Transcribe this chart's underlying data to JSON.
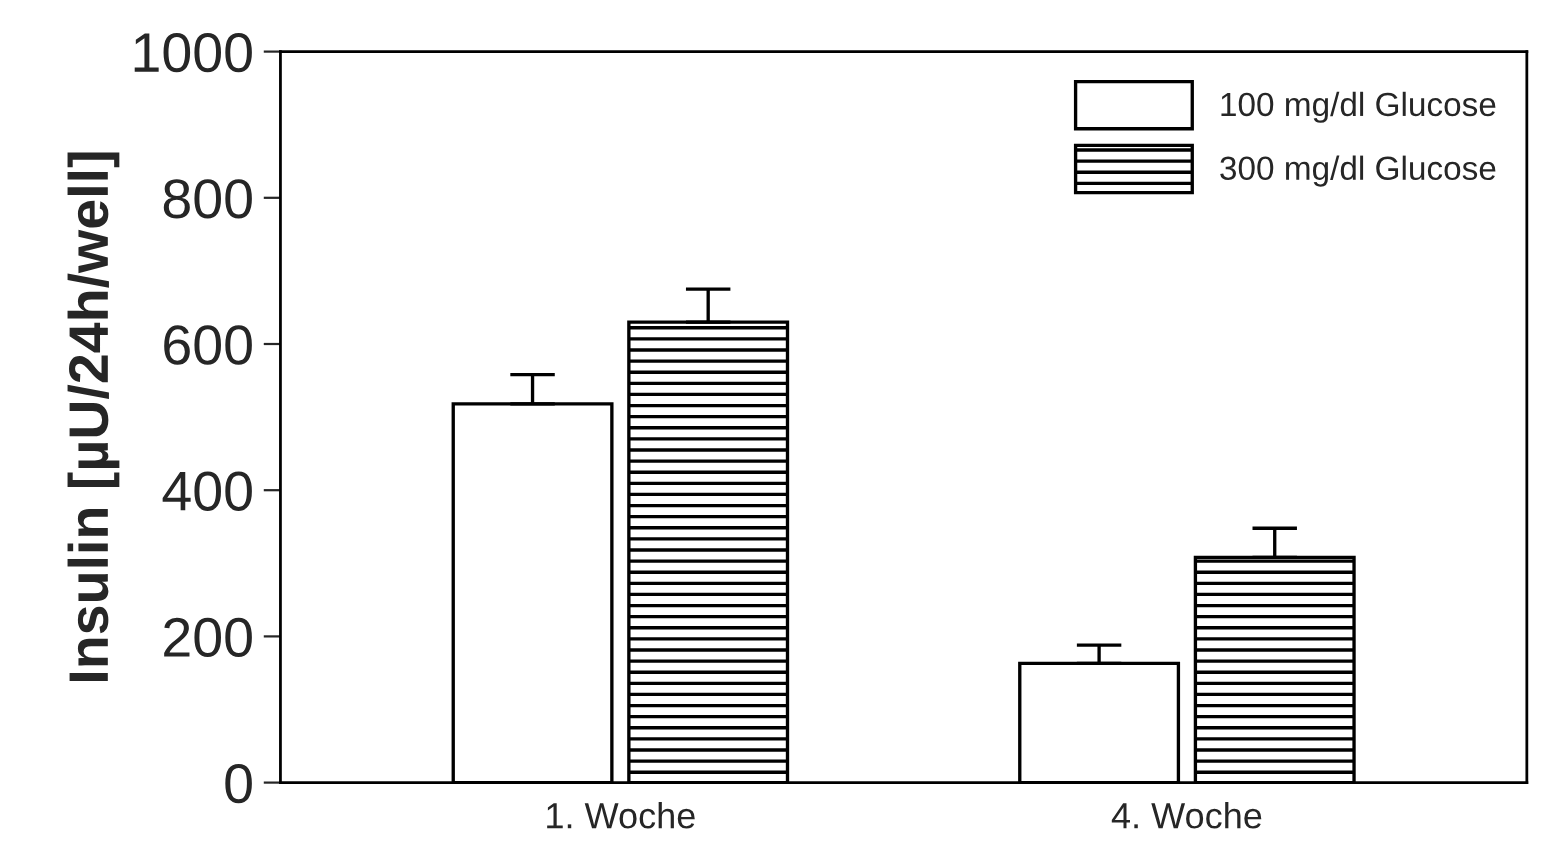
{
  "chart_data": {
    "type": "bar",
    "ylabel": "Insulin [µU/24h/well]",
    "categories": [
      "1. Woche",
      "4. Woche"
    ],
    "series": [
      {
        "name": "100 mg/dl Glucose",
        "color": "#ffffff",
        "values": [
          518,
          163
        ],
        "errors": [
          [
            518,
            558
          ],
          [
            163,
            188
          ]
        ]
      },
      {
        "name": "300 mg/dl Glucose",
        "color": "#000000",
        "values": [
          630,
          308
        ],
        "errors": [
          [
            630,
            675
          ],
          [
            308,
            348
          ]
        ]
      }
    ],
    "ylim": [
      0,
      1000
    ],
    "yticks": [
      0,
      200,
      400,
      600,
      800,
      1000
    ],
    "grid": false,
    "legend": "top right"
  }
}
